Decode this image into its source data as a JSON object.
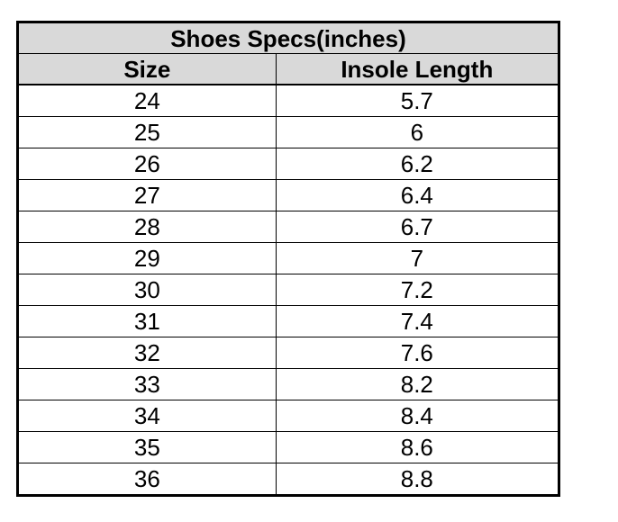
{
  "table": {
    "title": "Shoes Specs(inches)",
    "columns": [
      "Size",
      "Insole Length"
    ],
    "rows": [
      [
        "24",
        "5.7"
      ],
      [
        "25",
        "6"
      ],
      [
        "26",
        "6.2"
      ],
      [
        "27",
        "6.4"
      ],
      [
        "28",
        "6.7"
      ],
      [
        "29",
        "7"
      ],
      [
        "30",
        "7.2"
      ],
      [
        "31",
        "7.4"
      ],
      [
        "32",
        "7.6"
      ],
      [
        "33",
        "8.2"
      ],
      [
        "34",
        "8.4"
      ],
      [
        "35",
        "8.6"
      ],
      [
        "36",
        "8.8"
      ]
    ]
  },
  "colors": {
    "header_bg": "#d9d9d9",
    "row_bg": "#ffffff",
    "border": "#000000",
    "text": "#000000"
  }
}
